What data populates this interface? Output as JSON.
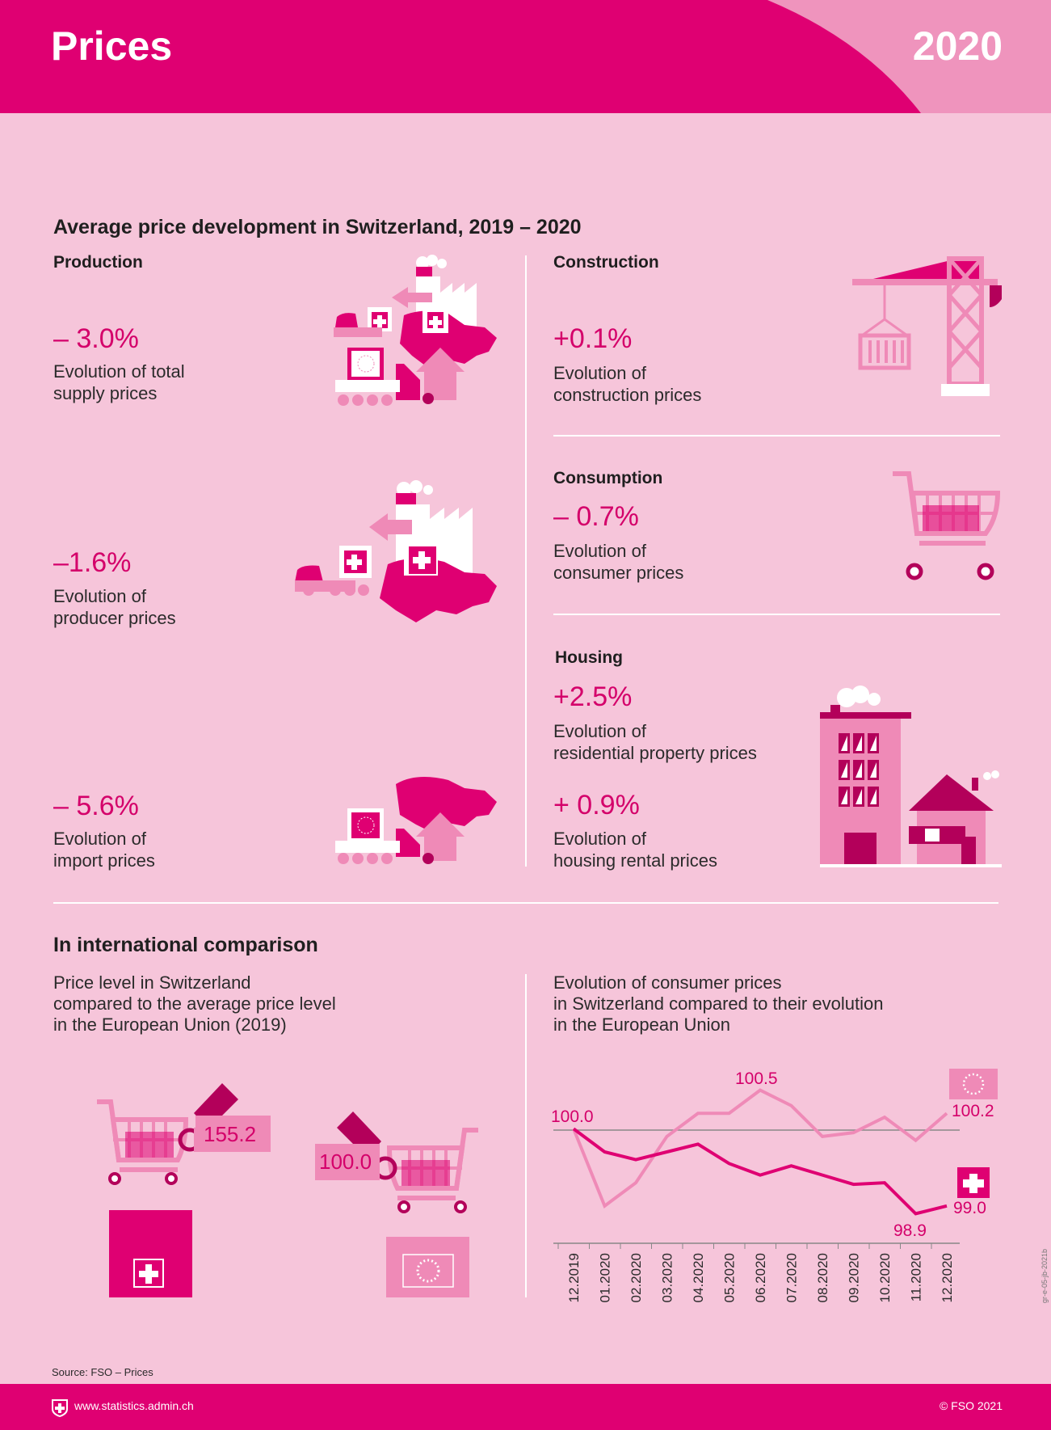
{
  "header": {
    "title": "Prices",
    "year": "2020"
  },
  "colors": {
    "magenta": "#df0072",
    "pink_light": "#f6c5da",
    "pink_mid": "#ef8ab7",
    "pink_dark": "#b3005a"
  },
  "section1": {
    "title": "Average price development in Switzerland, 2019 – 2020",
    "production": {
      "heading": "Production",
      "total": {
        "value": "– 3.0%",
        "line1": "Evolution of total",
        "line2": "supply prices"
      },
      "producer": {
        "value": "–1.6%",
        "line1": "Evolution of",
        "line2": "producer prices"
      },
      "import": {
        "value": "– 5.6%",
        "line1": "Evolution of",
        "line2": "import prices"
      }
    },
    "construction": {
      "heading": "Construction",
      "value": "+0.1%",
      "line1": "Evolution of",
      "line2": "construction prices"
    },
    "consumption": {
      "heading": "Consumption",
      "value": "– 0.7%",
      "line1": "Evolution of",
      "line2": "consumer prices"
    },
    "housing": {
      "heading": "Housing",
      "residential": {
        "value": "+2.5%",
        "line1": "Evolution of",
        "line2": "residential property prices"
      },
      "rental": {
        "value": "+ 0.9%",
        "line1": "Evolution of",
        "line2": "housing rental prices"
      }
    }
  },
  "section2": {
    "title": "In international comparison",
    "left_subtitle": [
      "Price level in Switzerland",
      "compared to the average price level",
      "in the European Union (2019)"
    ],
    "right_subtitle": [
      "Evolution of consumer prices",
      "in Switzerland compared to their evolution",
      "in the European Union"
    ],
    "price_level": {
      "switzerland": "155.2",
      "eu": "100.0"
    }
  },
  "chart_data": {
    "type": "line",
    "x": [
      "12.2019",
      "01.2020",
      "02.2020",
      "03.2020",
      "04.2020",
      "05.2020",
      "06.2020",
      "07.2020",
      "08.2020",
      "09.2020",
      "10.2020",
      "11.2020",
      "12.2020"
    ],
    "baseline": 100.0,
    "series": [
      {
        "icon": "eu-flag-icon",
        "color": "#ef8ab7",
        "values": [
          100.0,
          99.0,
          99.3,
          99.9,
          100.2,
          100.2,
          100.5,
          100.3,
          99.9,
          99.95,
          100.15,
          99.85,
          100.2
        ]
      },
      {
        "icon": "swiss-flag-icon",
        "color": "#df0072",
        "values": [
          100.0,
          99.7,
          99.6,
          99.7,
          99.8,
          99.55,
          99.4,
          99.52,
          99.4,
          99.28,
          99.3,
          98.9,
          99.0
        ]
      }
    ],
    "labels": {
      "start": "100.0",
      "eu_peak": "100.5",
      "eu_end": "100.2",
      "ch_min": "98.9",
      "ch_end": "99.0"
    },
    "ylim": [
      98.6,
      100.8
    ],
    "grid": false
  },
  "footer": {
    "source": "Source: FSO – Prices",
    "url": "www.statistics.admin.ch",
    "copyright": "© FSO 2021",
    "code": "gr-e-05-jb-2021b"
  }
}
